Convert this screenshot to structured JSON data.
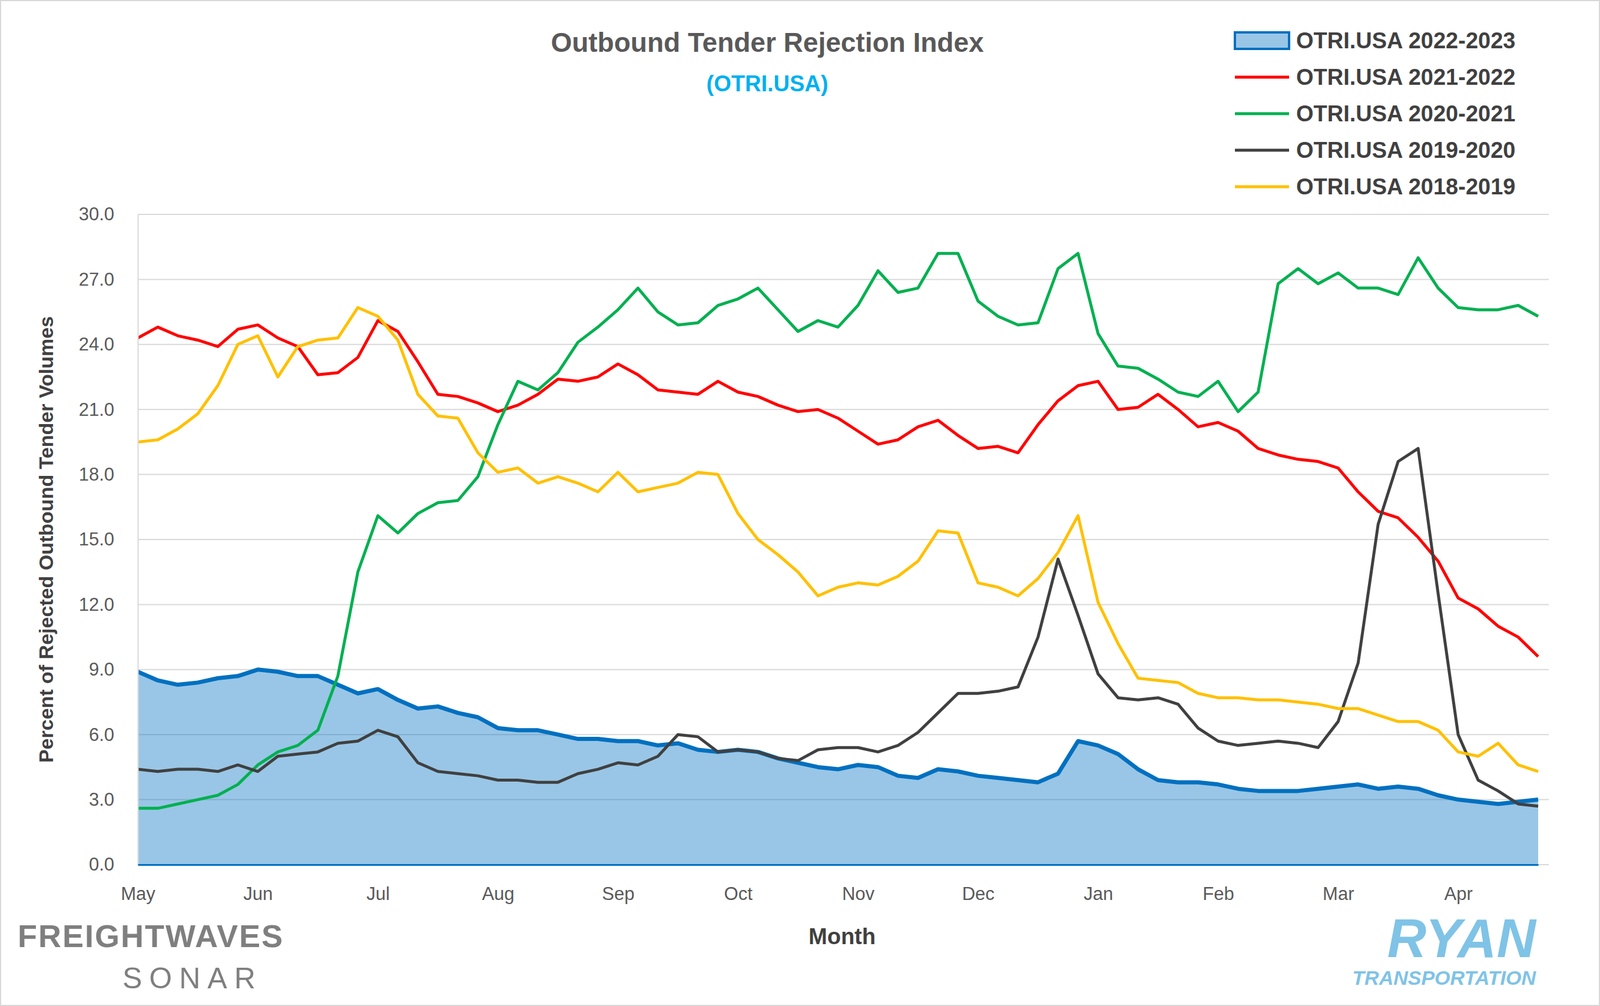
{
  "chart_data": {
    "type": "line",
    "title": "Outbound Tender Rejection Index",
    "subtitle": "(OTRI.USA)",
    "x_label": "Month",
    "y_label": "Percent of Rejected Outbound Tender Volumes",
    "annotations": [
      "FREIGHTWAVES",
      "SONAR",
      "RYAN",
      "TRANSPORTATION"
    ],
    "legend": "top-right",
    "grid": true,
    "ylim": [
      0,
      30
    ],
    "yticks": [
      {
        "value": 0,
        "label": "0.0"
      },
      {
        "value": 3,
        "label": "3.0"
      },
      {
        "value": 6,
        "label": "6.0"
      },
      {
        "value": 9,
        "label": "9.0"
      },
      {
        "value": 12,
        "label": "12.0"
      },
      {
        "value": 15,
        "label": "15.0"
      },
      {
        "value": 18,
        "label": "18.0"
      },
      {
        "value": 21,
        "label": "21.0"
      },
      {
        "value": 24,
        "label": "24.0"
      },
      {
        "value": 27,
        "label": "27.0"
      },
      {
        "value": 30,
        "label": "30.0"
      }
    ],
    "categories": [
      "May",
      null,
      null,
      null,
      null,
      null,
      "Jun",
      null,
      null,
      null,
      null,
      null,
      "Jul",
      null,
      null,
      null,
      null,
      null,
      "Aug",
      null,
      null,
      null,
      null,
      null,
      "Sep",
      null,
      null,
      null,
      null,
      null,
      "Oct",
      null,
      null,
      null,
      null,
      null,
      "Nov",
      null,
      null,
      null,
      null,
      null,
      "Dec",
      null,
      null,
      null,
      null,
      null,
      "Jan",
      null,
      null,
      null,
      null,
      null,
      "Feb",
      null,
      null,
      null,
      null,
      null,
      "Mar",
      null,
      null,
      null,
      null,
      null,
      "Apr",
      null,
      null,
      null,
      null
    ],
    "series": [
      {
        "name": "OTRI.USA 2022-2023",
        "type": "area",
        "color": "#0070c0",
        "values": [
          8.9,
          8.5,
          8.3,
          8.4,
          8.6,
          8.7,
          9.0,
          8.9,
          8.7,
          8.7,
          8.3,
          7.9,
          8.1,
          7.6,
          7.2,
          7.3,
          7.0,
          6.8,
          6.3,
          6.2,
          6.2,
          6.0,
          5.8,
          5.8,
          5.7,
          5.7,
          5.5,
          5.6,
          5.3,
          5.2,
          5.3,
          5.2,
          4.9,
          4.7,
          4.5,
          4.4,
          4.6,
          4.5,
          4.1,
          4.0,
          4.4,
          4.3,
          4.1,
          4.0,
          3.9,
          3.8,
          4.2,
          5.7,
          5.5,
          5.1,
          4.4,
          3.9,
          3.8,
          3.8,
          3.7,
          3.5,
          3.4,
          3.4,
          3.4,
          3.5,
          3.6,
          3.7,
          3.5,
          3.6,
          3.5,
          3.2,
          3.0,
          2.9,
          2.8,
          2.9,
          3.0
        ]
      },
      {
        "name": "OTRI.USA 2021-2022",
        "type": "line",
        "color": "#ff0000",
        "values": [
          24.3,
          24.8,
          24.4,
          24.2,
          23.9,
          24.7,
          24.9,
          24.3,
          23.9,
          22.6,
          22.7,
          23.4,
          25.1,
          24.6,
          23.2,
          21.7,
          21.6,
          21.3,
          20.9,
          21.2,
          21.7,
          22.4,
          22.3,
          22.5,
          23.1,
          22.6,
          21.9,
          21.8,
          21.7,
          22.3,
          21.8,
          21.6,
          21.2,
          20.9,
          21.0,
          20.6,
          20.0,
          19.4,
          19.6,
          20.2,
          20.5,
          19.8,
          19.2,
          19.3,
          19.0,
          20.3,
          21.4,
          22.1,
          22.3,
          21.0,
          21.1,
          21.7,
          21.0,
          20.2,
          20.4,
          20.0,
          19.2,
          18.9,
          18.7,
          18.6,
          18.3,
          17.2,
          16.3,
          16.0,
          15.1,
          14.0,
          12.3,
          11.8,
          11.0,
          10.5,
          9.6
        ]
      },
      {
        "name": "OTRI.USA 2020-2021",
        "type": "line",
        "color": "#00b050",
        "values": [
          2.6,
          2.6,
          2.8,
          3.0,
          3.2,
          3.7,
          4.6,
          5.2,
          5.5,
          6.2,
          8.7,
          13.5,
          16.1,
          15.3,
          16.2,
          16.7,
          16.8,
          17.9,
          20.3,
          22.3,
          21.9,
          22.7,
          24.1,
          24.8,
          25.6,
          26.6,
          25.5,
          24.9,
          25.0,
          25.8,
          26.1,
          26.6,
          25.6,
          24.6,
          25.1,
          24.8,
          25.8,
          27.4,
          26.4,
          26.6,
          28.2,
          28.2,
          26.0,
          25.3,
          24.9,
          25.0,
          27.5,
          28.2,
          24.5,
          23.0,
          22.9,
          22.4,
          21.8,
          21.6,
          22.3,
          20.9,
          21.8,
          26.8,
          27.5,
          26.8,
          27.3,
          26.6,
          26.6,
          26.3,
          28.0,
          26.6,
          25.7,
          25.6,
          25.6,
          25.8,
          25.3
        ]
      },
      {
        "name": "OTRI.USA 2019-2020",
        "type": "line",
        "color": "#404040",
        "values": [
          4.4,
          4.3,
          4.4,
          4.4,
          4.3,
          4.6,
          4.3,
          5.0,
          5.1,
          5.2,
          5.6,
          5.7,
          6.2,
          5.9,
          4.7,
          4.3,
          4.2,
          4.1,
          3.9,
          3.9,
          3.8,
          3.8,
          4.2,
          4.4,
          4.7,
          4.6,
          5.0,
          6.0,
          5.9,
          5.2,
          5.3,
          5.2,
          4.9,
          4.8,
          5.3,
          5.4,
          5.4,
          5.2,
          5.5,
          6.1,
          7.0,
          7.9,
          7.9,
          8.0,
          8.2,
          10.5,
          14.1,
          11.5,
          8.8,
          7.7,
          7.6,
          7.7,
          7.4,
          6.3,
          5.7,
          5.5,
          5.6,
          5.7,
          5.6,
          5.4,
          6.6,
          9.3,
          15.7,
          18.6,
          19.2,
          12.5,
          6.0,
          3.9,
          3.4,
          2.8,
          2.7
        ]
      },
      {
        "name": "OTRI.USA 2018-2019",
        "type": "line",
        "color": "#ffc000",
        "values": [
          19.5,
          19.6,
          20.1,
          20.8,
          22.1,
          24.0,
          24.4,
          22.5,
          23.9,
          24.2,
          24.3,
          25.7,
          25.3,
          24.2,
          21.7,
          20.7,
          20.6,
          19.0,
          18.1,
          18.3,
          17.6,
          17.9,
          17.6,
          17.2,
          18.1,
          17.2,
          17.4,
          17.6,
          18.1,
          18.0,
          16.2,
          15.0,
          14.3,
          13.5,
          12.4,
          12.8,
          13.0,
          12.9,
          13.3,
          14.0,
          15.4,
          15.3,
          13.0,
          12.8,
          12.4,
          13.2,
          14.4,
          16.1,
          12.1,
          10.2,
          8.6,
          8.5,
          8.4,
          7.9,
          7.7,
          7.7,
          7.6,
          7.6,
          7.5,
          7.4,
          7.2,
          7.2,
          6.9,
          6.6,
          6.6,
          6.2,
          5.2,
          5.0,
          5.6,
          4.6,
          4.3
        ]
      }
    ]
  }
}
